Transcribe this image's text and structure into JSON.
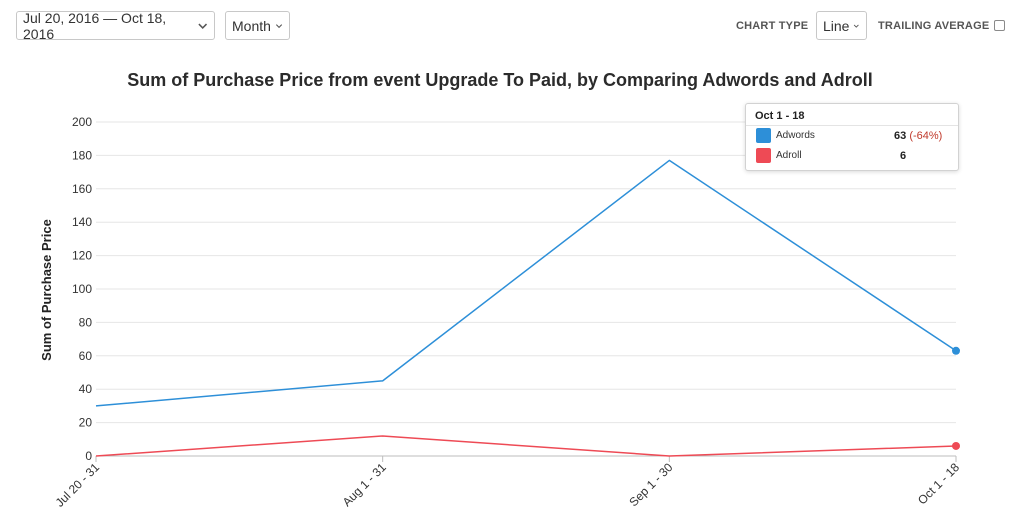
{
  "toolbar": {
    "date_range": "Jul 20, 2016 — Oct 18, 2016",
    "interval": "Month",
    "chart_type_label": "CHART TYPE",
    "chart_type_value": "Line",
    "trailing_average_label": "TRAILING AVERAGE"
  },
  "tooltip": {
    "header": "Oct 1 - 18",
    "rows": [
      {
        "name": "Adwords",
        "value": "63",
        "change": "(-64%)"
      },
      {
        "name": "Adroll",
        "value": "6",
        "change": ""
      }
    ]
  },
  "colors": {
    "adwords": "#2d8fd8",
    "adroll": "#ee4a55",
    "grid": "#e6e6e6",
    "axis": "#bdbdbd"
  },
  "chart_data": {
    "type": "line",
    "title": "Sum of Purchase Price from event Upgrade To Paid, by Comparing Adwords and Adroll",
    "xlabel": "",
    "ylabel": "Sum of Purchase Price",
    "categories": [
      "Jul 20 - 31",
      "Aug 1 - 31",
      "Sep 1 - 30",
      "Oct 1 - 18"
    ],
    "series": [
      {
        "name": "Adwords",
        "values": [
          30,
          45,
          177,
          63
        ]
      },
      {
        "name": "Adroll",
        "values": [
          0,
          12,
          0,
          6
        ]
      }
    ],
    "ylim": [
      0,
      200
    ],
    "yticks": [
      0,
      20,
      40,
      60,
      80,
      100,
      120,
      140,
      160,
      180,
      200
    ],
    "grid": true
  }
}
